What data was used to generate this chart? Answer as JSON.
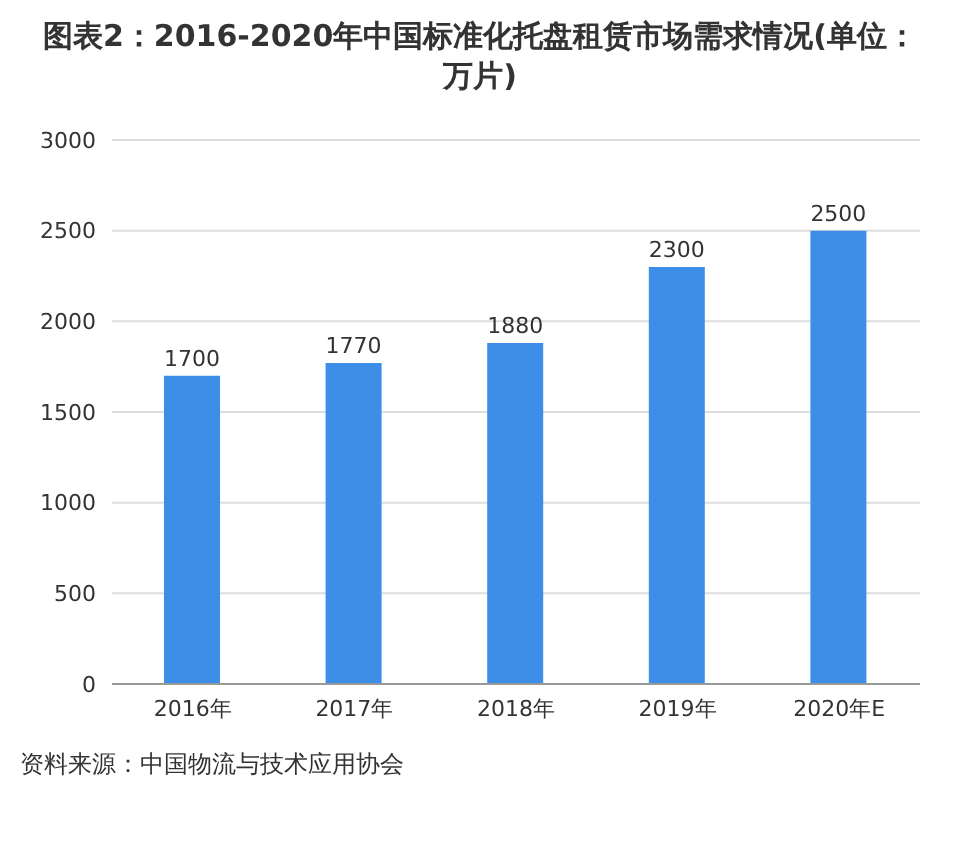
{
  "chart_data": {
    "type": "bar",
    "title": "图表2：2016-2020年中国标准化托盘租赁市场需求情况(单位：万片)",
    "categories": [
      "2016年",
      "2017年",
      "2018年",
      "2019年",
      "2020年E"
    ],
    "values": [
      1700,
      1770,
      1880,
      2300,
      2500
    ],
    "color": "#3d8ee6",
    "ylim": [
      0,
      3000
    ],
    "yticks": [
      0,
      500,
      1000,
      1500,
      2000,
      2500,
      3000
    ],
    "grid": "y",
    "data_labels": true,
    "annotations": [
      "资料来源：中国物流与技术应用协会"
    ]
  }
}
